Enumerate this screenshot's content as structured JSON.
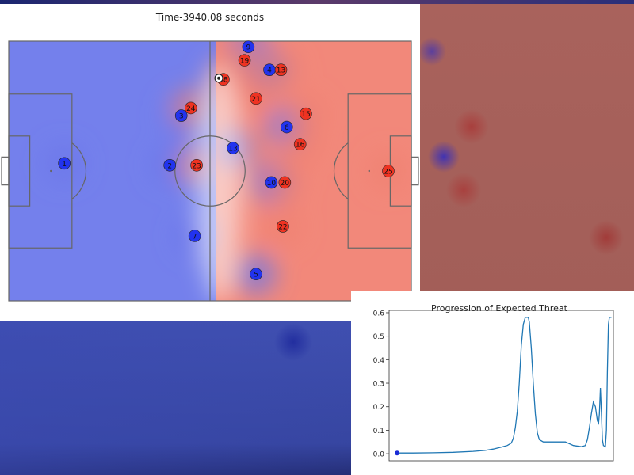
{
  "colors": {
    "home_team": "#2233ee",
    "away_team": "#ee3322",
    "pitch_lines": "#666666",
    "line_series": "#1f77b4"
  },
  "chart_data": [
    {
      "type": "heatmap",
      "title": "Time-3940.08 seconds",
      "xlim": [
        -52.5,
        52.5
      ],
      "ylim": [
        -34,
        34
      ],
      "home_team": [
        {
          "label": "9",
          "x": 10,
          "y": 32.5
        },
        {
          "label": "4",
          "x": 15.5,
          "y": 26.5
        },
        {
          "label": "3",
          "x": -7.5,
          "y": 14.5
        },
        {
          "label": "6",
          "x": 20,
          "y": 11.5
        },
        {
          "label": "13",
          "x": 6,
          "y": 6
        },
        {
          "label": "1",
          "x": -38,
          "y": 2
        },
        {
          "label": "2",
          "x": -10.5,
          "y": 1.5
        },
        {
          "label": "10",
          "x": 16,
          "y": -3
        },
        {
          "label": "7",
          "x": -4,
          "y": -17
        },
        {
          "label": "5",
          "x": 12,
          "y": -27
        }
      ],
      "away_team": [
        {
          "label": "19",
          "x": 9,
          "y": 29
        },
        {
          "label": "13",
          "x": 18.5,
          "y": 26.5
        },
        {
          "label": "18",
          "x": 3.5,
          "y": 24
        },
        {
          "label": "21",
          "x": 12,
          "y": 19
        },
        {
          "label": "24",
          "x": -5,
          "y": 16.5
        },
        {
          "label": "15",
          "x": 25,
          "y": 15
        },
        {
          "label": "16",
          "x": 23.5,
          "y": 7
        },
        {
          "label": "23",
          "x": -3.5,
          "y": 1.5
        },
        {
          "label": "20",
          "x": 19.5,
          "y": -3
        },
        {
          "label": "25",
          "x": 46.5,
          "y": 0
        },
        {
          "label": "22",
          "x": 19,
          "y": -14.5
        }
      ],
      "ball": {
        "x": 2.3,
        "y": 24.3
      }
    },
    {
      "type": "line",
      "title": "Progression of Expected Threat",
      "xlabel": "",
      "ylabel": "",
      "ylim": [
        -0.03,
        0.61
      ],
      "xlim": [
        -4,
        108
      ],
      "y_ticks": [
        "0.0",
        "0.1",
        "0.2",
        "0.3",
        "0.4",
        "0.5",
        "0.6"
      ],
      "grid": false,
      "series": [
        {
          "points": [
            [
              0,
              0.003
            ],
            [
              8,
              0.003
            ],
            [
              18,
              0.004
            ],
            [
              28,
              0.006
            ],
            [
              38,
              0.01
            ],
            [
              44,
              0.014
            ],
            [
              48,
              0.02
            ],
            [
              52,
              0.028
            ],
            [
              55,
              0.035
            ],
            [
              57,
              0.045
            ],
            [
              58,
              0.065
            ],
            [
              59,
              0.11
            ],
            [
              60,
              0.18
            ],
            [
              61,
              0.3
            ],
            [
              62,
              0.46
            ],
            [
              63,
              0.55
            ],
            [
              64,
              0.58
            ],
            [
              65.5,
              0.58
            ],
            [
              66,
              0.56
            ],
            [
              67,
              0.45
            ],
            [
              68,
              0.3
            ],
            [
              69,
              0.17
            ],
            [
              70,
              0.09
            ],
            [
              71,
              0.06
            ],
            [
              73,
              0.05
            ],
            [
              78,
              0.05
            ],
            [
              84,
              0.05
            ],
            [
              88,
              0.035
            ],
            [
              92,
              0.03
            ],
            [
              94,
              0.035
            ],
            [
              95,
              0.06
            ],
            [
              96,
              0.11
            ],
            [
              97,
              0.17
            ],
            [
              98,
              0.22
            ],
            [
              99,
              0.2
            ],
            [
              100,
              0.14
            ],
            [
              100.6,
              0.13
            ],
            [
              101,
              0.17
            ],
            [
              101.5,
              0.28
            ],
            [
              102,
              0.18
            ],
            [
              102.5,
              0.06
            ],
            [
              103,
              0.035
            ],
            [
              104,
              0.03
            ],
            [
              104.5,
              0.1
            ],
            [
              105,
              0.35
            ],
            [
              105.5,
              0.55
            ],
            [
              106,
              0.58
            ],
            [
              107,
              0.58
            ]
          ]
        }
      ],
      "current_point": {
        "x": 0,
        "y": 0.003
      }
    }
  ]
}
